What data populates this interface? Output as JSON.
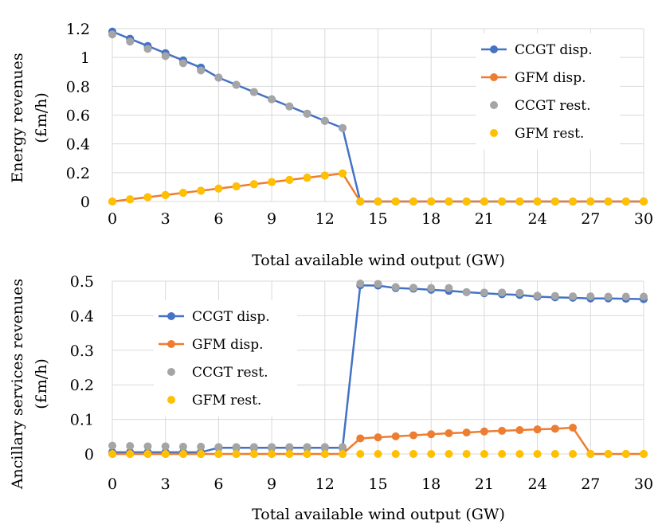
{
  "chart_data": [
    {
      "type": "line",
      "id": "energy",
      "xlabel": "Total available wind output (GW)",
      "ylabel_line1": "Energy revenues",
      "ylabel_line2": "(£m/h)",
      "xlim": [
        0,
        30
      ],
      "ylim": [
        0,
        1.2
      ],
      "xticks": [
        0,
        3,
        6,
        9,
        12,
        15,
        18,
        21,
        24,
        27,
        30
      ],
      "xtick_labels": [
        "0",
        "3",
        "6",
        "9",
        "12",
        "15",
        "18",
        "21",
        "24",
        "27",
        "30"
      ],
      "yticks": [
        0,
        0.2,
        0.4,
        0.6,
        0.8,
        1.0,
        1.2
      ],
      "ytick_labels": [
        "0",
        "0.2",
        "0.4",
        "0.6",
        "0.8",
        "1",
        "1.2"
      ],
      "legend_position": "top-right",
      "x": [
        0,
        1,
        2,
        3,
        4,
        5,
        6,
        7,
        8,
        9,
        10,
        11,
        12,
        13,
        14,
        15,
        16,
        17,
        18,
        19,
        20,
        21,
        22,
        23,
        24,
        25,
        26,
        27,
        28,
        29,
        30
      ],
      "series": [
        {
          "name": "CCGT disp.",
          "color": "#4472C4",
          "style": "line-marker",
          "values": [
            1.18,
            1.13,
            1.08,
            1.03,
            0.98,
            0.93,
            0.86,
            0.81,
            0.76,
            0.71,
            0.66,
            0.61,
            0.56,
            0.51,
            0,
            0,
            0,
            0,
            0,
            0,
            0,
            0,
            0,
            0,
            0,
            0,
            0,
            0,
            0,
            0,
            0
          ]
        },
        {
          "name": "GFM disp.",
          "color": "#ED7D31",
          "style": "line-marker",
          "values": [
            0,
            0.015,
            0.03,
            0.045,
            0.06,
            0.075,
            0.09,
            0.105,
            0.12,
            0.135,
            0.15,
            0.165,
            0.18,
            0.195,
            0,
            0,
            0,
            0,
            0,
            0,
            0,
            0,
            0,
            0,
            0,
            0,
            0,
            0,
            0,
            0,
            0
          ]
        },
        {
          "name": "CCGT rest.",
          "color": "#A5A5A5",
          "style": "marker",
          "values": [
            1.16,
            1.11,
            1.06,
            1.01,
            0.96,
            0.91,
            0.86,
            0.81,
            0.76,
            0.71,
            0.66,
            0.61,
            0.56,
            0.51,
            0,
            0,
            0,
            0,
            0,
            0,
            0,
            0,
            0,
            0,
            0,
            0,
            0,
            0,
            0,
            0,
            0
          ]
        },
        {
          "name": "GFM rest.",
          "color": "#FFC000",
          "style": "marker",
          "values": [
            0,
            0.015,
            0.03,
            0.045,
            0.06,
            0.075,
            0.09,
            0.105,
            0.12,
            0.135,
            0.15,
            0.165,
            0.18,
            0.195,
            0,
            0,
            0,
            0,
            0,
            0,
            0,
            0,
            0,
            0,
            0,
            0,
            0,
            0,
            0,
            0,
            0
          ]
        }
      ]
    },
    {
      "type": "line",
      "id": "ancillary",
      "xlabel": "Total available wind output (GW)",
      "ylabel_line1": "Ancillary services revenues",
      "ylabel_line2": "(£m/h)",
      "xlim": [
        0,
        30
      ],
      "ylim": [
        0,
        0.5
      ],
      "xticks": [
        0,
        3,
        6,
        9,
        12,
        15,
        18,
        21,
        24,
        27,
        30
      ],
      "xtick_labels": [
        "0",
        "3",
        "6",
        "9",
        "12",
        "15",
        "18",
        "21",
        "24",
        "27",
        "30"
      ],
      "yticks": [
        0,
        0.1,
        0.2,
        0.3,
        0.4,
        0.5
      ],
      "ytick_labels": [
        "0",
        "0.1",
        "0.2",
        "0.3",
        "0.4",
        "0.5"
      ],
      "legend_position": "center-left",
      "x": [
        0,
        1,
        2,
        3,
        4,
        5,
        6,
        7,
        8,
        9,
        10,
        11,
        12,
        13,
        14,
        15,
        16,
        17,
        18,
        19,
        20,
        21,
        22,
        23,
        24,
        25,
        26,
        27,
        28,
        29,
        30
      ],
      "series": [
        {
          "name": "CCGT disp.",
          "color": "#4472C4",
          "style": "line-marker",
          "values": [
            0.005,
            0.005,
            0.005,
            0.005,
            0.005,
            0.005,
            0.018,
            0.018,
            0.018,
            0.018,
            0.018,
            0.018,
            0.018,
            0.018,
            0.488,
            0.487,
            0.48,
            0.478,
            0.475,
            0.472,
            0.468,
            0.465,
            0.462,
            0.46,
            0.455,
            0.453,
            0.452,
            0.45,
            0.45,
            0.449,
            0.448
          ]
        },
        {
          "name": "GFM disp.",
          "color": "#ED7D31",
          "style": "line-marker",
          "values": [
            0,
            0,
            0,
            0,
            0,
            0,
            0,
            0,
            0,
            0,
            0,
            0,
            0,
            0,
            0.045,
            0.048,
            0.051,
            0.054,
            0.057,
            0.06,
            0.062,
            0.065,
            0.067,
            0.069,
            0.071,
            0.073,
            0.076,
            0,
            0,
            0,
            0
          ]
        },
        {
          "name": "CCGT rest.",
          "color": "#A5A5A5",
          "style": "marker",
          "values": [
            0.024,
            0.023,
            0.022,
            0.022,
            0.021,
            0.021,
            0.02,
            0.02,
            0.02,
            0.02,
            0.02,
            0.02,
            0.02,
            0.02,
            0.493,
            0.492,
            0.483,
            0.481,
            0.48,
            0.48,
            0.468,
            0.467,
            0.467,
            0.466,
            0.458,
            0.457,
            0.456,
            0.456,
            0.455,
            0.455,
            0.455
          ]
        },
        {
          "name": "GFM rest.",
          "color": "#FFC000",
          "style": "marker",
          "values": [
            0,
            0,
            0,
            0,
            0,
            0,
            0,
            0,
            0,
            0,
            0,
            0,
            0,
            0,
            0,
            0,
            0,
            0,
            0,
            0,
            0,
            0,
            0,
            0,
            0,
            0,
            0,
            0,
            0,
            0,
            0
          ]
        }
      ]
    }
  ]
}
